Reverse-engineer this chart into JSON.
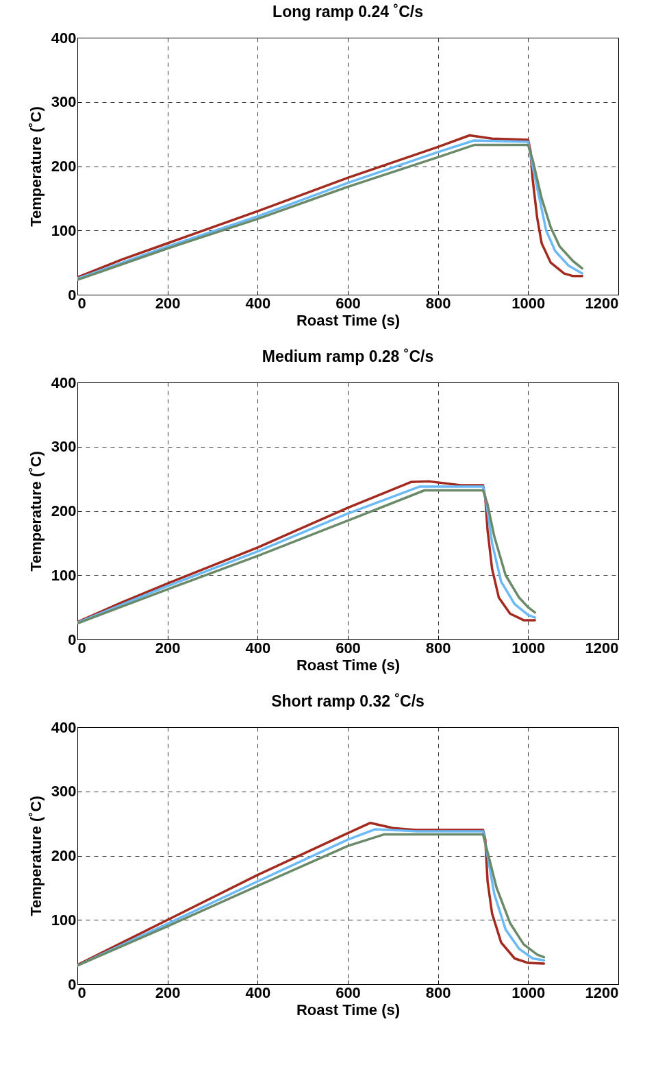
{
  "chart_data": [
    {
      "type": "line",
      "title": "Long ramp 0.24 ˚C/s",
      "xlabel": "Roast Time (s)",
      "ylabel": "Temperature (˚C)",
      "xlim": [
        0,
        1200
      ],
      "ylim": [
        0,
        400
      ],
      "xticks": [
        0,
        200,
        400,
        600,
        800,
        1000,
        1200
      ],
      "yticks": [
        0,
        100,
        200,
        300,
        400
      ],
      "grid": true,
      "line_style": "solid",
      "series": [
        {
          "color": "#a32a1f",
          "x": [
            0,
            100,
            200,
            400,
            600,
            800,
            870,
            920,
            1000,
            1005,
            1010,
            1020,
            1030,
            1050,
            1080,
            1100,
            1120
          ],
          "values": [
            27,
            55,
            80,
            130,
            182,
            230,
            248,
            243,
            241,
            225,
            180,
            120,
            80,
            50,
            33,
            29,
            29
          ]
        },
        {
          "color": "#6bb9f7",
          "x": [
            0,
            200,
            400,
            600,
            800,
            880,
            1000,
            1010,
            1025,
            1040,
            1060,
            1090,
            1120
          ],
          "values": [
            25,
            75,
            122,
            174,
            222,
            240,
            238,
            200,
            150,
            100,
            68,
            45,
            33
          ]
        },
        {
          "color": "#6a8a6a",
          "x": [
            0,
            200,
            400,
            600,
            800,
            880,
            1000,
            1010,
            1030,
            1050,
            1070,
            1100,
            1120
          ],
          "values": [
            23,
            72,
            118,
            168,
            214,
            233,
            233,
            210,
            150,
            105,
            75,
            52,
            41
          ]
        }
      ]
    },
    {
      "type": "line",
      "title": "Medium ramp 0.28 ˚C/s",
      "xlabel": "Roast Time (s)",
      "ylabel": "Temperature (˚C)",
      "xlim": [
        0,
        1200
      ],
      "ylim": [
        0,
        400
      ],
      "xticks": [
        0,
        200,
        400,
        600,
        800,
        1000,
        1200
      ],
      "yticks": [
        0,
        100,
        200,
        300,
        400
      ],
      "grid": true,
      "line_style": "solid",
      "series": [
        {
          "color": "#a32a1f",
          "x": [
            0,
            100,
            200,
            400,
            600,
            740,
            780,
            850,
            900,
            905,
            910,
            920,
            935,
            960,
            990,
            1015
          ],
          "values": [
            27,
            58,
            87,
            143,
            205,
            245,
            246,
            240,
            240,
            220,
            170,
            110,
            65,
            40,
            30,
            30
          ]
        },
        {
          "color": "#6bb9f7",
          "x": [
            0,
            200,
            400,
            600,
            760,
            900,
            908,
            920,
            940,
            970,
            1000,
            1015
          ],
          "values": [
            26,
            83,
            137,
            196,
            238,
            238,
            210,
            150,
            90,
            55,
            38,
            34
          ]
        },
        {
          "color": "#6a8a6a",
          "x": [
            0,
            200,
            400,
            600,
            770,
            900,
            910,
            925,
            950,
            980,
            1000,
            1015
          ],
          "values": [
            25,
            78,
            130,
            185,
            232,
            232,
            210,
            160,
            100,
            65,
            50,
            42
          ]
        }
      ]
    },
    {
      "type": "line",
      "title": "Short ramp 0.32 ˚C/s",
      "xlabel": "Roast Time (s)",
      "ylabel": "Temperature (˚C)",
      "xlim": [
        0,
        1200
      ],
      "ylim": [
        0,
        400
      ],
      "xticks": [
        0,
        200,
        400,
        600,
        800,
        1000,
        1200
      ],
      "yticks": [
        0,
        100,
        200,
        300,
        400
      ],
      "grid": true,
      "line_style": "solid",
      "series": [
        {
          "color": "#a32a1f",
          "x": [
            0,
            100,
            200,
            400,
            600,
            650,
            700,
            750,
            900,
            905,
            910,
            920,
            940,
            970,
            1000,
            1035
          ],
          "values": [
            30,
            65,
            100,
            170,
            235,
            251,
            243,
            240,
            240,
            225,
            160,
            110,
            65,
            40,
            33,
            32
          ]
        },
        {
          "color": "#6bb9f7",
          "x": [
            0,
            200,
            400,
            600,
            660,
            750,
            900,
            910,
            925,
            950,
            980,
            1010,
            1035
          ],
          "values": [
            29,
            94,
            160,
            225,
            241,
            238,
            238,
            200,
            140,
            85,
            55,
            40,
            37
          ]
        },
        {
          "color": "#6a8a6a",
          "x": [
            0,
            200,
            400,
            600,
            680,
            900,
            912,
            930,
            960,
            990,
            1020,
            1035
          ],
          "values": [
            29,
            90,
            153,
            215,
            233,
            233,
            200,
            150,
            95,
            62,
            46,
            42
          ]
        }
      ]
    }
  ]
}
